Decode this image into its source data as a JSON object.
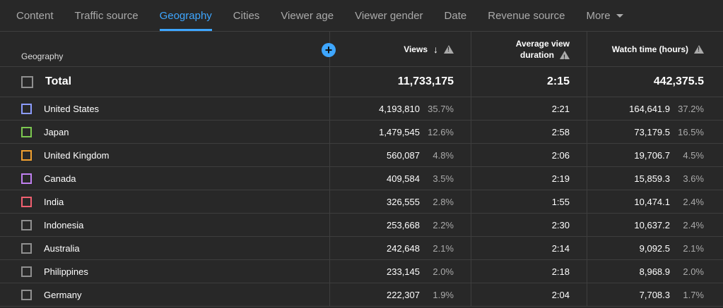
{
  "tabs": [
    {
      "label": "Content"
    },
    {
      "label": "Traffic source"
    },
    {
      "label": "Geography"
    },
    {
      "label": "Cities"
    },
    {
      "label": "Viewer age"
    },
    {
      "label": "Viewer gender"
    },
    {
      "label": "Date"
    },
    {
      "label": "Revenue source"
    },
    {
      "label": "More"
    }
  ],
  "columns": {
    "geography": "Geography",
    "views": "Views",
    "avg_line1": "Average view",
    "avg_line2": "duration",
    "watch_time": "Watch time (hours)"
  },
  "total": {
    "label": "Total",
    "views": "11,733,175",
    "avg": "2:15",
    "watch": "442,375.5"
  },
  "rows": [
    {
      "country": "United States",
      "color": "#8c9cff",
      "link": true,
      "views": "4,193,810",
      "views_pct": "35.7%",
      "avg": "2:21",
      "watch": "164,641.9",
      "watch_pct": "37.2%"
    },
    {
      "country": "Japan",
      "color": "#7cc850",
      "link": false,
      "views": "1,479,545",
      "views_pct": "12.6%",
      "avg": "2:58",
      "watch": "73,179.5",
      "watch_pct": "16.5%"
    },
    {
      "country": "United Kingdom",
      "color": "#f0a030",
      "link": true,
      "views": "560,087",
      "views_pct": "4.8%",
      "avg": "2:06",
      "watch": "19,706.7",
      "watch_pct": "4.5%"
    },
    {
      "country": "Canada",
      "color": "#c080f0",
      "link": true,
      "views": "409,584",
      "views_pct": "3.5%",
      "avg": "2:19",
      "watch": "15,859.3",
      "watch_pct": "3.6%"
    },
    {
      "country": "India",
      "color": "#f06070",
      "link": true,
      "views": "326,555",
      "views_pct": "2.8%",
      "avg": "1:55",
      "watch": "10,474.1",
      "watch_pct": "2.4%"
    },
    {
      "country": "Indonesia",
      "color": "#909090",
      "link": false,
      "views": "253,668",
      "views_pct": "2.2%",
      "avg": "2:30",
      "watch": "10,637.2",
      "watch_pct": "2.4%"
    },
    {
      "country": "Australia",
      "color": "#909090",
      "link": false,
      "views": "242,648",
      "views_pct": "2.1%",
      "avg": "2:14",
      "watch": "9,092.5",
      "watch_pct": "2.1%"
    },
    {
      "country": "Philippines",
      "color": "#909090",
      "link": false,
      "views": "233,145",
      "views_pct": "2.0%",
      "avg": "2:18",
      "watch": "8,968.9",
      "watch_pct": "2.0%"
    },
    {
      "country": "Germany",
      "color": "#909090",
      "link": true,
      "views": "222,307",
      "views_pct": "1.9%",
      "avg": "2:04",
      "watch": "7,708.3",
      "watch_pct": "1.7%"
    }
  ]
}
